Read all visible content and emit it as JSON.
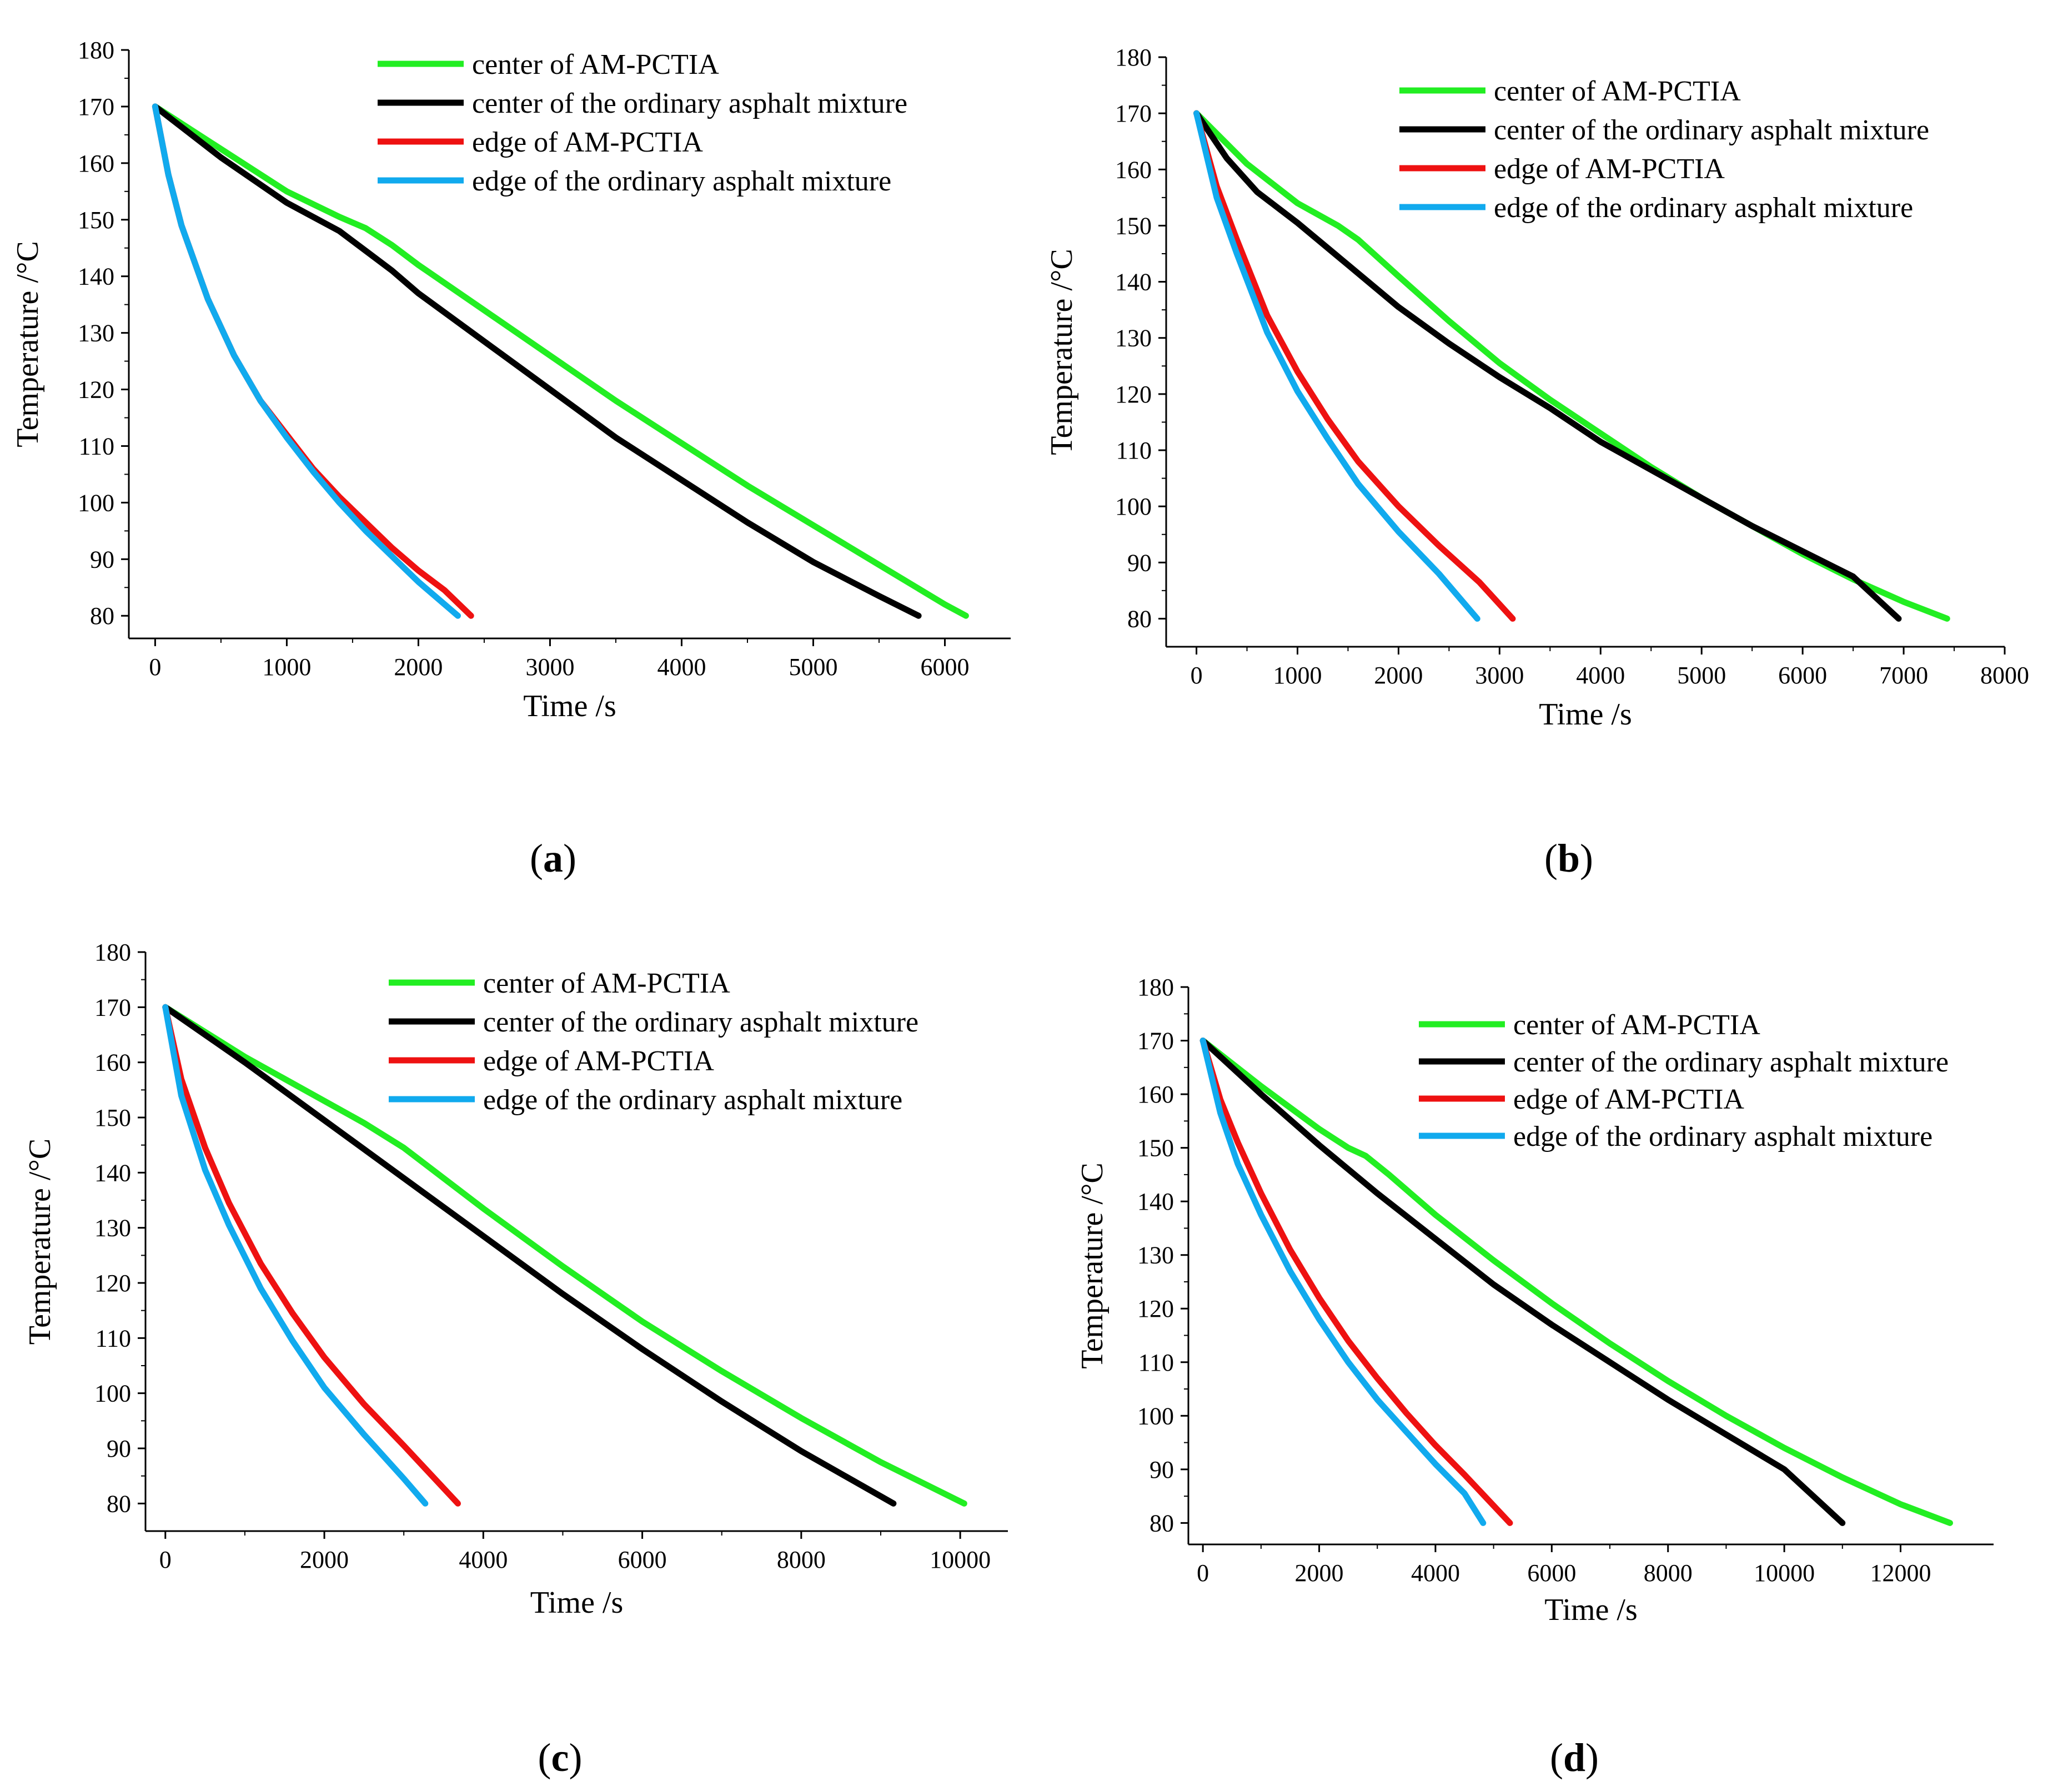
{
  "chart_data": [
    {
      "type": "line",
      "panel_label": "a",
      "xlabel": "Time /s",
      "ylabel": "Temperature /°C",
      "xlim": [
        -200,
        6500
      ],
      "ylim": [
        76,
        180
      ],
      "xticks": [
        0,
        1000,
        2000,
        3000,
        4000,
        5000,
        6000
      ],
      "yticks": [
        80,
        90,
        100,
        110,
        120,
        130,
        140,
        150,
        160,
        170,
        180
      ],
      "legend_position": "top-right",
      "series": [
        {
          "name": "center of AM-PCTIA",
          "color": "#22ee22",
          "x": [
            0,
            500,
            1000,
            1400,
            1600,
            1800,
            2000,
            2500,
            3000,
            3500,
            4000,
            4500,
            5000,
            5500,
            6000,
            6160
          ],
          "y": [
            170,
            162.5,
            155,
            150.5,
            148.5,
            145.5,
            142,
            134,
            126,
            118,
            110.5,
            103,
            96,
            89,
            82,
            80
          ]
        },
        {
          "name": "center of the ordinary asphalt mixture",
          "color": "#000000",
          "x": [
            0,
            500,
            1000,
            1400,
            1600,
            1800,
            2000,
            2500,
            3000,
            3500,
            4000,
            4500,
            5000,
            5500,
            5800
          ],
          "y": [
            170,
            161,
            153,
            148,
            144.5,
            141,
            137,
            128.5,
            120,
            111.5,
            104,
            96.5,
            89.5,
            83.5,
            80
          ]
        },
        {
          "name": "edge of AM-PCTIA",
          "color": "#ee1111",
          "x": [
            0,
            100,
            200,
            400,
            600,
            800,
            1000,
            1200,
            1400,
            1600,
            1800,
            2000,
            2200,
            2400
          ],
          "y": [
            170,
            158,
            149,
            136,
            126,
            118,
            112,
            106,
            101,
            96.5,
            92,
            88,
            84.5,
            80
          ]
        },
        {
          "name": "edge of the ordinary asphalt mixture",
          "color": "#11aaee",
          "x": [
            0,
            100,
            200,
            400,
            600,
            800,
            1000,
            1200,
            1400,
            1600,
            1800,
            2000,
            2150,
            2300
          ],
          "y": [
            170,
            158,
            149,
            136,
            126,
            118,
            111.5,
            105.5,
            100,
            95,
            90.5,
            86,
            83,
            80
          ]
        }
      ]
    },
    {
      "type": "line",
      "panel_label": "b",
      "xlabel": "Time /s",
      "ylabel": "Temperature /°C",
      "xlim": [
        -300,
        8000
      ],
      "ylim": [
        75,
        180
      ],
      "xticks": [
        0,
        1000,
        2000,
        3000,
        4000,
        5000,
        6000,
        7000,
        8000
      ],
      "yticks": [
        80,
        90,
        100,
        110,
        120,
        130,
        140,
        150,
        160,
        170,
        180
      ],
      "legend_position": "top-right",
      "series": [
        {
          "name": "center of AM-PCTIA",
          "color": "#22ee22",
          "x": [
            0,
            500,
            1000,
            1400,
            1600,
            2000,
            2500,
            3000,
            3500,
            4000,
            4500,
            5000,
            5500,
            6000,
            6500,
            7000,
            7430
          ],
          "y": [
            170,
            161,
            154,
            150,
            147.5,
            141,
            133,
            125.5,
            119,
            113,
            107,
            101.5,
            96.5,
            91.5,
            87,
            83,
            80
          ]
        },
        {
          "name": "center of the ordinary asphalt mixture",
          "color": "#000000",
          "x": [
            0,
            300,
            600,
            1000,
            1500,
            2000,
            2500,
            3000,
            3500,
            4000,
            4500,
            5000,
            5500,
            6000,
            6500,
            6950
          ],
          "y": [
            170,
            162,
            156,
            150.5,
            143,
            135.5,
            129,
            123,
            117.5,
            111.5,
            106.5,
            101.5,
            96.5,
            92,
            87.5,
            80
          ]
        },
        {
          "name": "edge of AM-PCTIA",
          "color": "#ee1111",
          "x": [
            0,
            200,
            400,
            700,
            1000,
            1300,
            1600,
            2000,
            2400,
            2800,
            3130
          ],
          "y": [
            170,
            157,
            147.5,
            134,
            124,
            115.5,
            108,
            100,
            93,
            86.5,
            80
          ]
        },
        {
          "name": "edge of the ordinary asphalt mixture",
          "color": "#11aaee",
          "x": [
            0,
            200,
            400,
            700,
            1000,
            1300,
            1600,
            2000,
            2400,
            2780
          ],
          "y": [
            170,
            155,
            145,
            131,
            120.5,
            112,
            104,
            95.5,
            88,
            80
          ]
        }
      ]
    },
    {
      "type": "line",
      "panel_label": "c",
      "xlabel": "Time /s",
      "ylabel": "Temperature /°C",
      "xlim": [
        -250,
        10600
      ],
      "ylim": [
        75,
        180
      ],
      "xticks": [
        0,
        2000,
        4000,
        6000,
        8000,
        10000
      ],
      "yticks": [
        80,
        90,
        100,
        110,
        120,
        130,
        140,
        150,
        160,
        170,
        180
      ],
      "legend_position": "top-right",
      "series": [
        {
          "name": "center of AM-PCTIA",
          "color": "#22ee22",
          "x": [
            0,
            1000,
            2000,
            2500,
            3000,
            4000,
            5000,
            6000,
            7000,
            8000,
            9000,
            10050
          ],
          "y": [
            170,
            161,
            153,
            149,
            144.5,
            133.5,
            123,
            113,
            104,
            95.5,
            87.5,
            80
          ]
        },
        {
          "name": "center of the ordinary asphalt mixture",
          "color": "#000000",
          "x": [
            0,
            1000,
            2000,
            3000,
            4000,
            5000,
            6000,
            7000,
            8000,
            9160
          ],
          "y": [
            170,
            160,
            149.5,
            139,
            128.5,
            118,
            108,
            98.5,
            89.5,
            80
          ]
        },
        {
          "name": "edge of AM-PCTIA",
          "color": "#ee1111",
          "x": [
            0,
            200,
            500,
            800,
            1200,
            1600,
            2000,
            2500,
            3000,
            3680
          ],
          "y": [
            170,
            157,
            144.5,
            134.5,
            123.5,
            114.5,
            106.5,
            98,
            90.5,
            80
          ]
        },
        {
          "name": "edge of the ordinary asphalt mixture",
          "color": "#11aaee",
          "x": [
            0,
            200,
            500,
            800,
            1200,
            1600,
            2000,
            2500,
            3000,
            3270
          ],
          "y": [
            170,
            154,
            140.5,
            130.5,
            119,
            109.5,
            101,
            92.5,
            84.5,
            80
          ]
        }
      ]
    },
    {
      "type": "line",
      "panel_label": "d",
      "xlabel": "Time /s",
      "ylabel": "Temperature /°C",
      "xlim": [
        -250,
        13600
      ],
      "ylim": [
        76,
        180
      ],
      "xticks": [
        0,
        2000,
        4000,
        6000,
        8000,
        10000,
        12000
      ],
      "yticks": [
        80,
        90,
        100,
        110,
        120,
        130,
        140,
        150,
        160,
        170,
        180
      ],
      "legend_position": "top-right",
      "series": [
        {
          "name": "center of AM-PCTIA",
          "color": "#22ee22",
          "x": [
            0,
            1000,
            2000,
            2500,
            2800,
            3200,
            4000,
            5000,
            6000,
            7000,
            8000,
            9000,
            10000,
            11000,
            12000,
            12850
          ],
          "y": [
            170,
            161.5,
            153.5,
            150,
            148.5,
            145,
            137.5,
            129,
            121,
            113.5,
            106.5,
            100,
            94,
            88.5,
            83.5,
            80
          ]
        },
        {
          "name": "center of the ordinary asphalt mixture",
          "color": "#000000",
          "x": [
            0,
            1000,
            2000,
            3000,
            4000,
            5000,
            6000,
            7000,
            8000,
            9000,
            10000,
            11000
          ],
          "y": [
            170,
            160,
            150.5,
            141.5,
            133,
            124.5,
            117,
            110,
            103,
            96.5,
            90,
            80
          ]
        },
        {
          "name": "edge of AM-PCTIA",
          "color": "#ee1111",
          "x": [
            0,
            300,
            600,
            1000,
            1500,
            2000,
            2500,
            3000,
            3500,
            4000,
            4500,
            5280
          ],
          "y": [
            170,
            159,
            151,
            141.5,
            131,
            122,
            114,
            107,
            100.5,
            94.5,
            89,
            80
          ]
        },
        {
          "name": "edge of the ordinary asphalt mixture",
          "color": "#11aaee",
          "x": [
            0,
            300,
            600,
            1000,
            1500,
            2000,
            2500,
            3000,
            3500,
            4000,
            4500,
            4820
          ],
          "y": [
            170,
            156.5,
            147,
            137.5,
            127,
            118,
            110,
            103,
            97,
            91,
            85.5,
            80
          ]
        }
      ]
    }
  ]
}
